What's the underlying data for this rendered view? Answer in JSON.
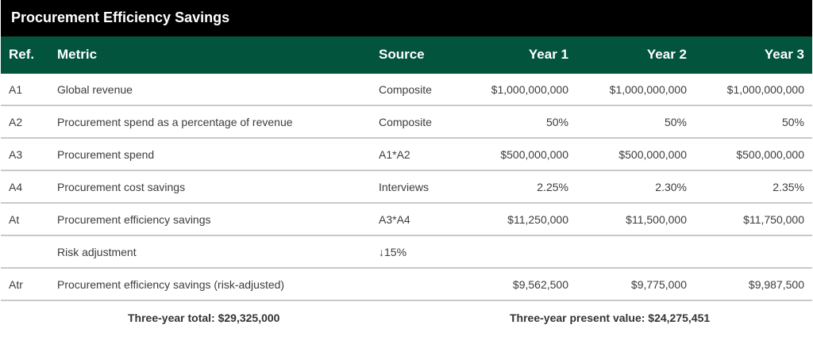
{
  "colors": {
    "title_bar": "#000000",
    "header_bar": "#03543d",
    "row_divider": "#c9c9c9",
    "body_text": "#3c3c3c"
  },
  "title": "Procurement Efficiency Savings",
  "headers": {
    "ref": "Ref.",
    "metric": "Metric",
    "source": "Source",
    "year1": "Year 1",
    "year2": "Year 2",
    "year3": "Year 3"
  },
  "rows": [
    {
      "ref": "A1",
      "metric": "Global revenue",
      "source": "Composite",
      "year1": "$1,000,000,000",
      "year2": "$1,000,000,000",
      "year3": "$1,000,000,000"
    },
    {
      "ref": "A2",
      "metric": "Procurement spend as a percentage of revenue",
      "source": "Composite",
      "year1": "50%",
      "year2": "50%",
      "year3": "50%"
    },
    {
      "ref": "A3",
      "metric": "Procurement spend",
      "source": "A1*A2",
      "year1": "$500,000,000",
      "year2": "$500,000,000",
      "year3": "$500,000,000"
    },
    {
      "ref": "A4",
      "metric": "Procurement cost savings",
      "source": "Interviews",
      "year1": "2.25%",
      "year2": "2.30%",
      "year3": "2.35%"
    },
    {
      "ref": "At",
      "metric": "Procurement efficiency savings",
      "source": "A3*A4",
      "year1": "$11,250,000",
      "year2": "$11,500,000",
      "year3": "$11,750,000"
    },
    {
      "ref": "",
      "metric": "Risk adjustment",
      "source": "↓15%",
      "year1": "",
      "year2": "",
      "year3": ""
    },
    {
      "ref": "Atr",
      "metric": "Procurement efficiency savings (risk-adjusted)",
      "source": "",
      "year1": "$9,562,500",
      "year2": "$9,775,000",
      "year3": "$9,987,500"
    }
  ],
  "footer": {
    "total": "Three-year total: $29,325,000",
    "present_value": "Three-year present value: $24,275,451"
  }
}
